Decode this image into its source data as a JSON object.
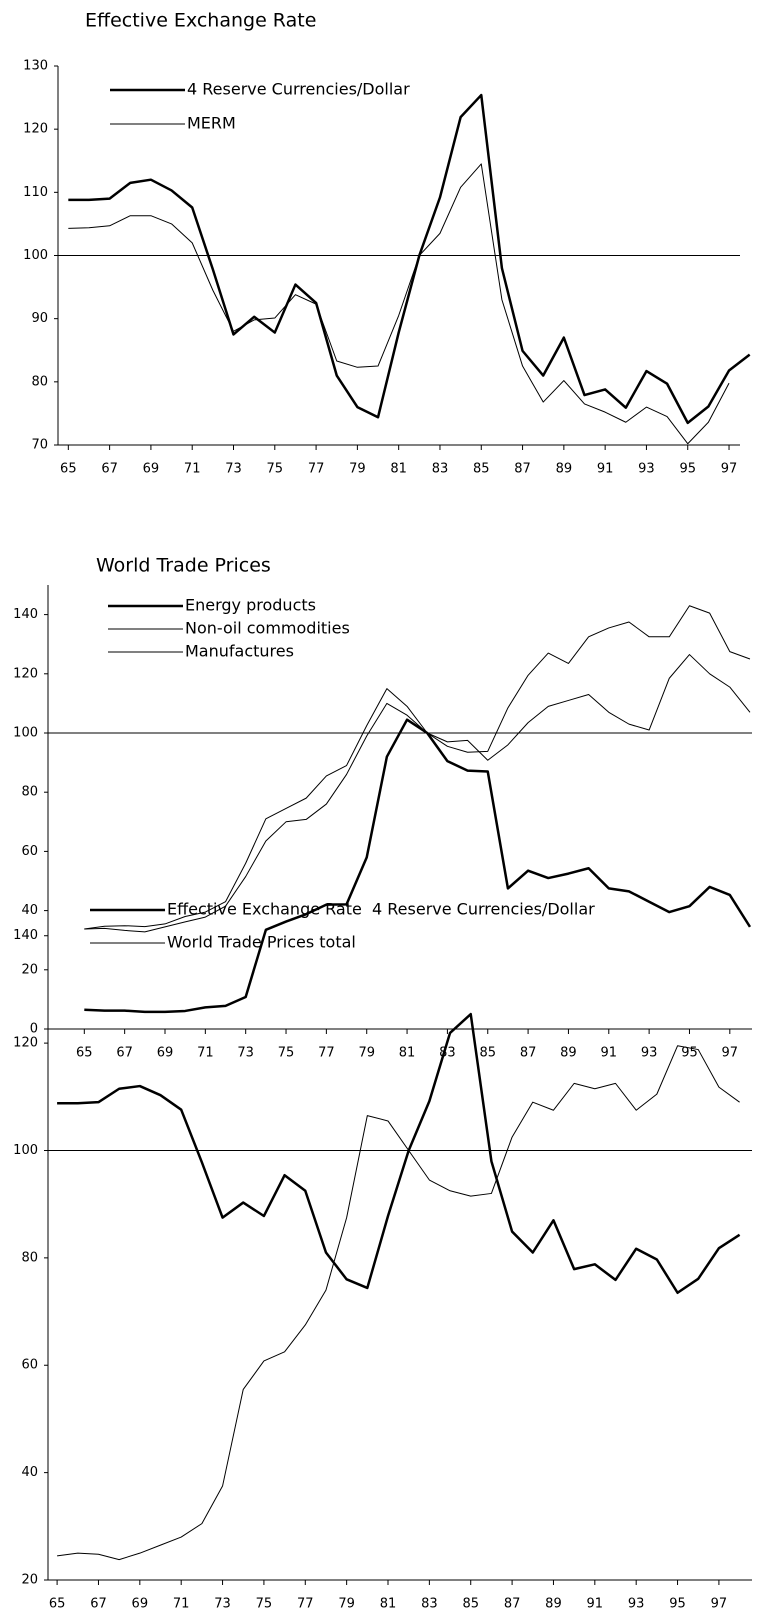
{
  "chart_data": [
    {
      "type": "line",
      "title": "Effective Exchange Rate",
      "x": [
        65,
        66,
        67,
        68,
        69,
        70,
        71,
        72,
        73,
        74,
        75,
        76,
        77,
        78,
        79,
        80,
        81,
        82,
        83,
        84,
        85,
        86,
        87,
        88,
        89,
        90,
        91,
        92,
        93,
        94,
        95,
        96,
        97,
        98
      ],
      "xlim": [
        64.5,
        98.5
      ],
      "xticks": [
        65,
        67,
        69,
        71,
        73,
        75,
        77,
        79,
        81,
        83,
        85,
        87,
        89,
        91,
        93,
        95,
        97
      ],
      "ylim": [
        70,
        130
      ],
      "yticks": [
        70,
        80,
        90,
        100,
        110,
        120,
        130
      ],
      "reference_line": 100,
      "series": [
        {
          "name": "4 Reserve Currencies/Dollar",
          "color": "#000000",
          "linewidth": 2.5,
          "values": [
            108.8,
            108.8,
            109.0,
            111.5,
            112.0,
            110.3,
            107.6,
            97.8,
            87.5,
            90.3,
            87.8,
            95.4,
            92.5,
            81.0,
            76.0,
            74.4,
            87.8,
            100.0,
            109.2,
            121.9,
            125.4,
            98.0,
            84.9,
            81.0,
            87.0,
            77.9,
            78.8,
            75.9,
            81.7,
            79.7,
            73.5,
            76.1,
            81.8,
            84.3
          ]
        },
        {
          "name": "MERM",
          "color": "#000000",
          "linewidth": 1,
          "values": [
            104.3,
            104.4,
            104.7,
            106.3,
            106.3,
            105.0,
            102.0,
            94.5,
            88.0,
            89.8,
            90.1,
            93.8,
            92.3,
            83.3,
            82.3,
            82.5,
            90.5,
            100.0,
            103.5,
            110.8,
            114.5,
            93.0,
            82.5,
            76.8,
            80.2,
            76.5,
            75.2,
            73.6,
            76.0,
            74.5,
            70.2,
            73.6,
            79.8,
            null
          ]
        }
      ]
    },
    {
      "type": "line",
      "title": "World Trade Prices",
      "x": [
        65,
        66,
        67,
        68,
        69,
        70,
        71,
        72,
        73,
        74,
        75,
        76,
        77,
        78,
        79,
        80,
        81,
        82,
        83,
        84,
        85,
        86,
        87,
        88,
        89,
        90,
        91,
        92,
        93,
        94,
        95,
        96,
        97,
        98
      ],
      "xlim": [
        63.2,
        98.1
      ],
      "xticks": [
        65,
        67,
        69,
        71,
        73,
        75,
        77,
        79,
        81,
        83,
        85,
        87,
        89,
        91,
        93,
        95,
        97
      ],
      "ylim": [
        0,
        150
      ],
      "yticks": [
        0,
        20,
        40,
        60,
        80,
        100,
        120,
        140
      ],
      "reference_line": 100,
      "series": [
        {
          "name": "Energy products",
          "color": "#000000",
          "linewidth": 2.5,
          "values": [
            6.5,
            6.2,
            6.2,
            5.8,
            5.8,
            6.1,
            7.3,
            7.8,
            10.8,
            33.5,
            36.3,
            38.8,
            42.0,
            42.1,
            58.0,
            92.0,
            104.5,
            100.0,
            90.5,
            87.3,
            87.0,
            47.5,
            53.5,
            51.0,
            52.5,
            54.3,
            47.5,
            46.5,
            43.0,
            39.5,
            41.5,
            48.0,
            45.3,
            34.5
          ]
        },
        {
          "name": "Non-oil commodities",
          "color": "#000000",
          "linewidth": 1,
          "values": [
            33.8,
            34.7,
            34.9,
            34.6,
            35.5,
            38.0,
            39.5,
            43.0,
            56.0,
            71.0,
            74.5,
            78.0,
            85.5,
            89.0,
            102.5,
            115.0,
            109.0,
            100.0,
            97.0,
            97.5,
            90.8,
            96.0,
            103.5,
            109.0,
            111.0,
            113.0,
            107.0,
            103.0,
            101.0,
            118.5,
            126.5,
            120.0,
            115.5,
            107.0
          ]
        },
        {
          "name": "Manufactures",
          "color": "#000000",
          "linewidth": 1,
          "values": [
            33.8,
            34.0,
            33.3,
            32.8,
            34.5,
            36.2,
            37.8,
            41.5,
            51.5,
            63.5,
            70.0,
            70.8,
            76.0,
            86.0,
            99.0,
            110.0,
            106.0,
            100.0,
            95.5,
            93.5,
            93.8,
            108.5,
            119.5,
            127.0,
            123.5,
            132.5,
            135.5,
            137.5,
            132.5,
            132.5,
            143.0,
            140.5,
            127.5,
            125.0
          ]
        }
      ]
    },
    {
      "type": "line",
      "x": [
        65,
        66,
        67,
        68,
        69,
        70,
        71,
        72,
        73,
        74,
        75,
        76,
        77,
        78,
        79,
        80,
        81,
        82,
        83,
        84,
        85,
        86,
        87,
        88,
        89,
        90,
        91,
        92,
        93,
        94,
        95,
        96,
        97,
        98
      ],
      "xlim": [
        64.56,
        98.6
      ],
      "xticks": [
        65,
        67,
        69,
        71,
        73,
        75,
        77,
        79,
        81,
        83,
        85,
        87,
        89,
        91,
        93,
        95,
        97
      ],
      "ylim": [
        20,
        142
      ],
      "yticks": [
        20,
        40,
        60,
        80,
        100,
        120,
        140
      ],
      "reference_line": 100,
      "series": [
        {
          "name": "Effective Exchange Rate  4 Reserve Currencies/Dollar",
          "color": "#000000",
          "linewidth": 2.5,
          "values": [
            108.8,
            108.8,
            109.0,
            111.5,
            112.0,
            110.3,
            107.6,
            97.8,
            87.5,
            90.3,
            87.8,
            95.4,
            92.5,
            81.0,
            76.0,
            74.4,
            87.8,
            100.0,
            109.2,
            121.9,
            125.4,
            98.0,
            84.9,
            81.0,
            87.0,
            77.9,
            78.8,
            75.9,
            81.7,
            79.7,
            73.5,
            76.1,
            81.8,
            84.3
          ]
        },
        {
          "name": "World Trade Prices total",
          "color": "#000000",
          "linewidth": 1,
          "values": [
            24.5,
            25.0,
            24.8,
            23.8,
            25.0,
            26.5,
            28.0,
            30.5,
            37.5,
            55.5,
            60.8,
            62.5,
            67.5,
            74.0,
            87.5,
            106.5,
            105.5,
            100.0,
            94.5,
            92.5,
            91.5,
            92.0,
            102.5,
            109.0,
            107.5,
            112.5,
            111.5,
            112.5,
            107.5,
            110.5,
            119.5,
            118.8,
            111.8,
            109.0
          ]
        }
      ]
    }
  ]
}
